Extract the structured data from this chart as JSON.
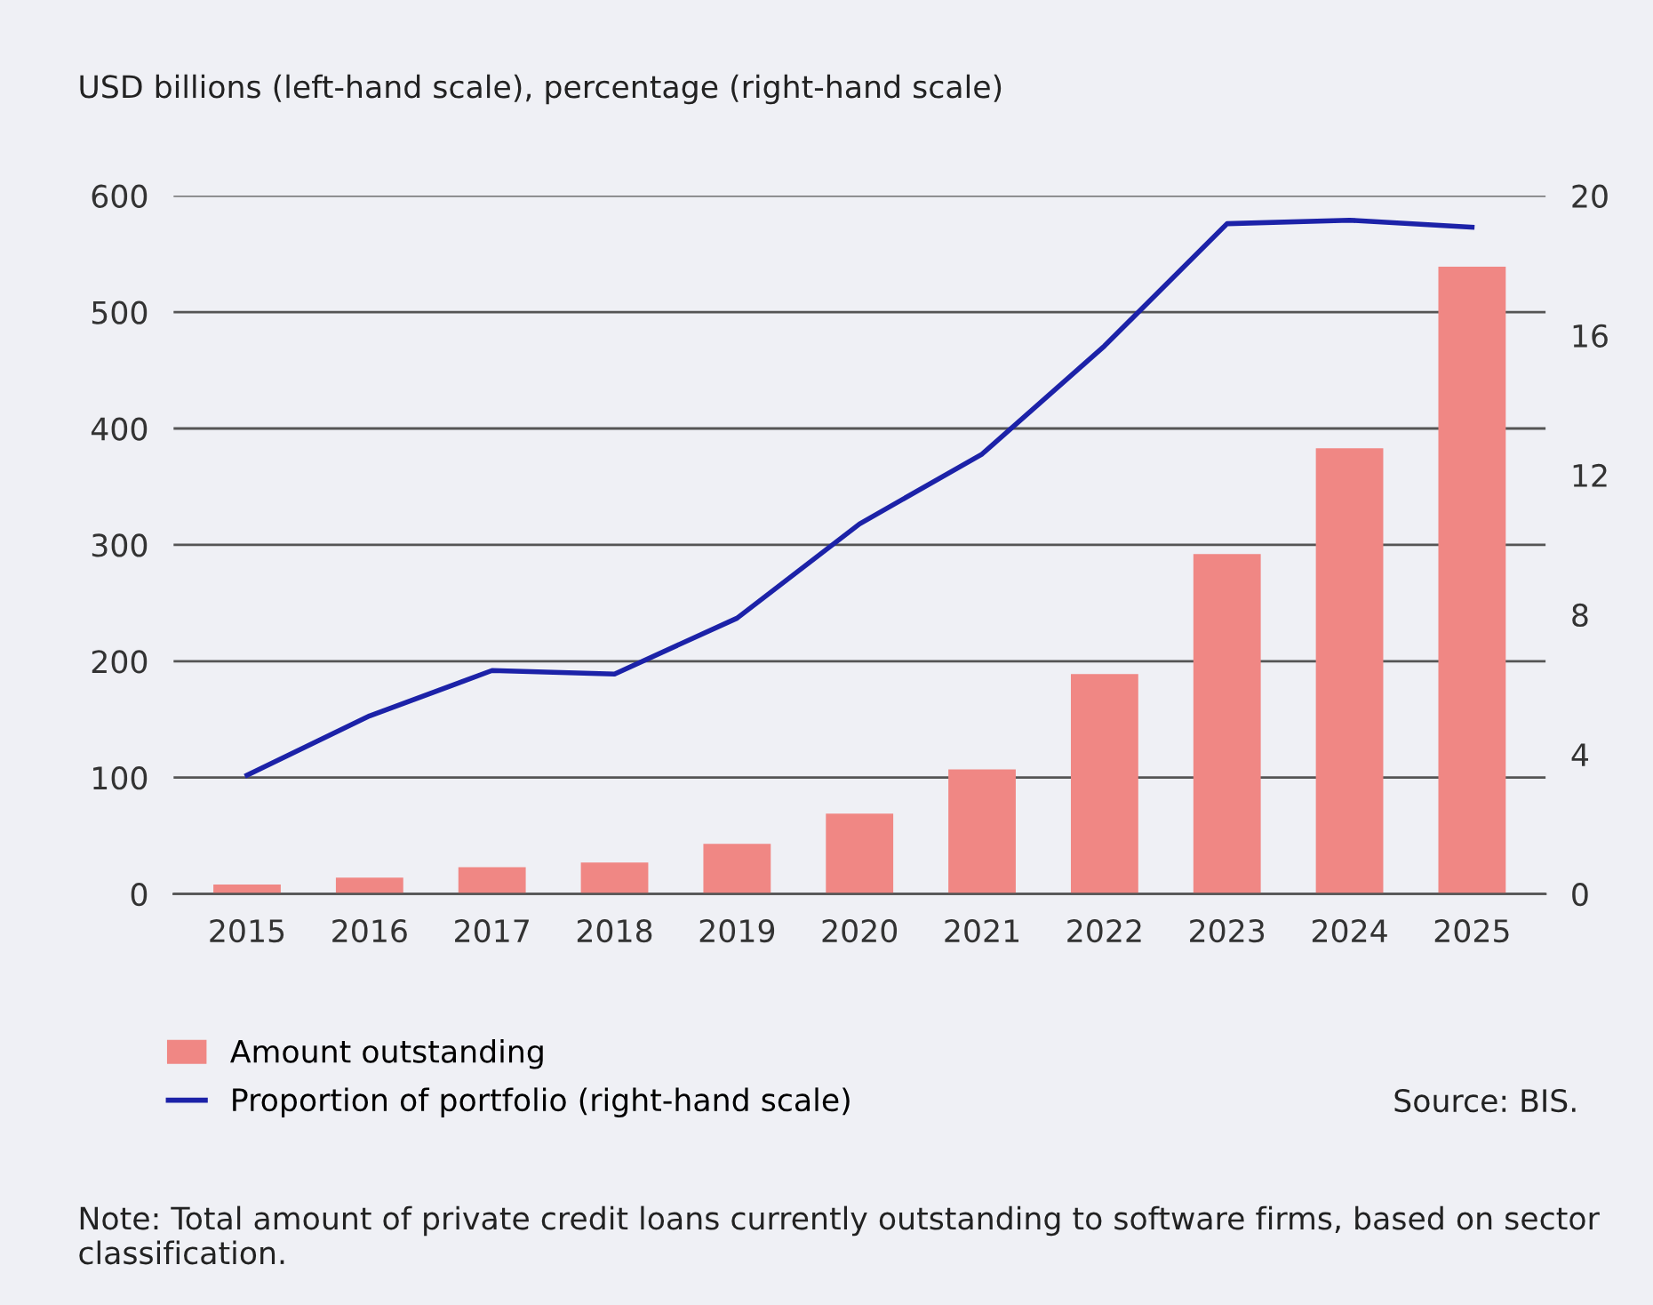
{
  "chart_data": {
    "type": "bar",
    "ylabel": "USD billions (left-hand scale), percentage (right-hand scale)",
    "categories": [
      "2015",
      "2016",
      "2017",
      "2018",
      "2019",
      "2020",
      "2021",
      "2022",
      "2023",
      "2024",
      "2025"
    ],
    "series": [
      {
        "name": "Amount outstanding",
        "color": "#f08784",
        "values": [
          8,
          14,
          23,
          27,
          43,
          69,
          107,
          189,
          292,
          383,
          539
        ]
      },
      {
        "name": "Proportion of portfolio (right-hand scale)",
        "type": "line",
        "axis": "y2",
        "color": "#1c22a8",
        "values": [
          3.4,
          5.1,
          6.4,
          6.3,
          7.9,
          10.6,
          12.6,
          15.7,
          19.2,
          19.3,
          19.1
        ]
      }
    ],
    "ylim": [
      0,
      600
    ],
    "yticks": [
      0,
      100,
      200,
      300,
      400,
      500,
      600
    ],
    "y2lim": [
      0,
      20
    ],
    "y2ticks": [
      0,
      4,
      8,
      12,
      16,
      20
    ],
    "grid": "y",
    "legend": "bottom",
    "marker": "none",
    "line_style": "solid",
    "annotations": [
      "Source: BIS.",
      "Note: Total amount of private credit loans currently outstanding to software firms, based on sector classification."
    ]
  }
}
